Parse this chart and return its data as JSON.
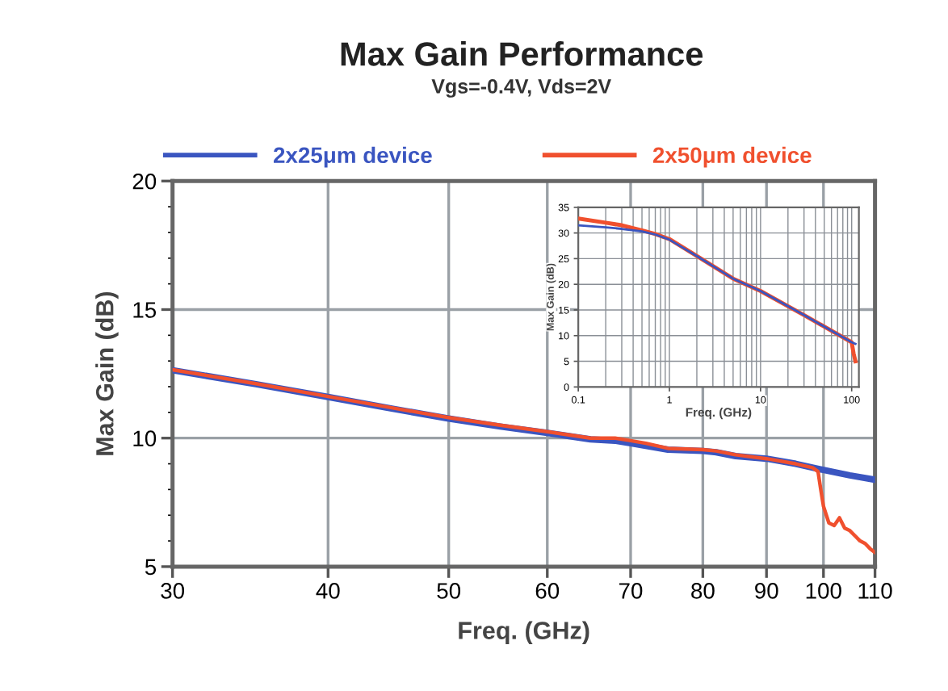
{
  "chart_data": [
    {
      "type": "line",
      "title": "Max Gain Performance",
      "subtitle": "Vgs=-0.4V, Vds=2V",
      "xlabel": "Freq. (GHz)",
      "ylabel": "Max Gain (dB)",
      "log": "x",
      "xlim": [
        30,
        110
      ],
      "xticks": [
        30,
        40,
        50,
        60,
        70,
        80,
        90,
        100,
        110
      ],
      "ylim": [
        5,
        20
      ],
      "yticks": [
        5,
        10,
        15,
        20
      ],
      "grid": true,
      "legend": "top",
      "series": [
        {
          "name": "2x25μm device",
          "color": "#3a55c0",
          "x": [
            30,
            35,
            40,
            45,
            50,
            55,
            60,
            65,
            68,
            70,
            72,
            75,
            80,
            82,
            85,
            90,
            95,
            100,
            105,
            110
          ],
          "values": [
            12.64,
            12.1,
            11.6,
            11.15,
            10.76,
            10.45,
            10.2,
            9.95,
            9.9,
            9.8,
            9.7,
            9.55,
            9.5,
            9.45,
            9.3,
            9.2,
            9.0,
            8.76,
            8.55,
            8.38
          ]
        },
        {
          "name": "2x50μm device",
          "color": "#f0502e",
          "x": [
            30,
            35,
            40,
            45,
            50,
            55,
            60,
            65,
            68,
            70,
            72,
            75,
            80,
            82,
            85,
            90,
            95,
            98,
            99,
            99.5,
            100,
            101,
            102,
            103,
            104,
            105,
            106,
            107,
            108,
            109,
            110
          ],
          "values": [
            12.66,
            12.12,
            11.62,
            11.18,
            10.8,
            10.5,
            10.25,
            10.0,
            10.0,
            9.9,
            9.8,
            9.6,
            9.55,
            9.5,
            9.35,
            9.2,
            9.0,
            8.85,
            8.7,
            8.0,
            7.35,
            6.7,
            6.6,
            6.9,
            6.5,
            6.4,
            6.2,
            6.0,
            5.9,
            5.7,
            5.55
          ]
        }
      ]
    },
    {
      "type": "line",
      "xlabel": "Freq. (GHz)",
      "ylabel": "Max Gain (dB)",
      "log": "x",
      "xlim": [
        0.1,
        120
      ],
      "xticks": [
        0.1,
        1,
        10,
        100
      ],
      "ylim": [
        0,
        35
      ],
      "yticks": [
        0,
        5,
        10,
        15,
        20,
        25,
        30,
        35
      ],
      "grid": true,
      "series": [
        {
          "color": "#f0502e",
          "x": [
            0.1,
            0.2,
            0.3,
            0.5,
            0.7,
            1,
            2,
            5,
            10,
            30,
            100,
            105,
            110
          ],
          "values": [
            32.8,
            32.0,
            31.5,
            30.5,
            29.8,
            28.8,
            25.5,
            21.1,
            18.7,
            14.0,
            8.7,
            6.5,
            5.0
          ]
        },
        {
          "color": "#3a55c0",
          "x": [
            0.1,
            0.2,
            0.3,
            0.5,
            0.7,
            1,
            2,
            5,
            10,
            30,
            100,
            110
          ],
          "values": [
            31.5,
            31.1,
            30.8,
            30.3,
            29.7,
            28.7,
            25.5,
            21.1,
            18.7,
            14.0,
            8.7,
            8.4
          ]
        }
      ]
    }
  ]
}
